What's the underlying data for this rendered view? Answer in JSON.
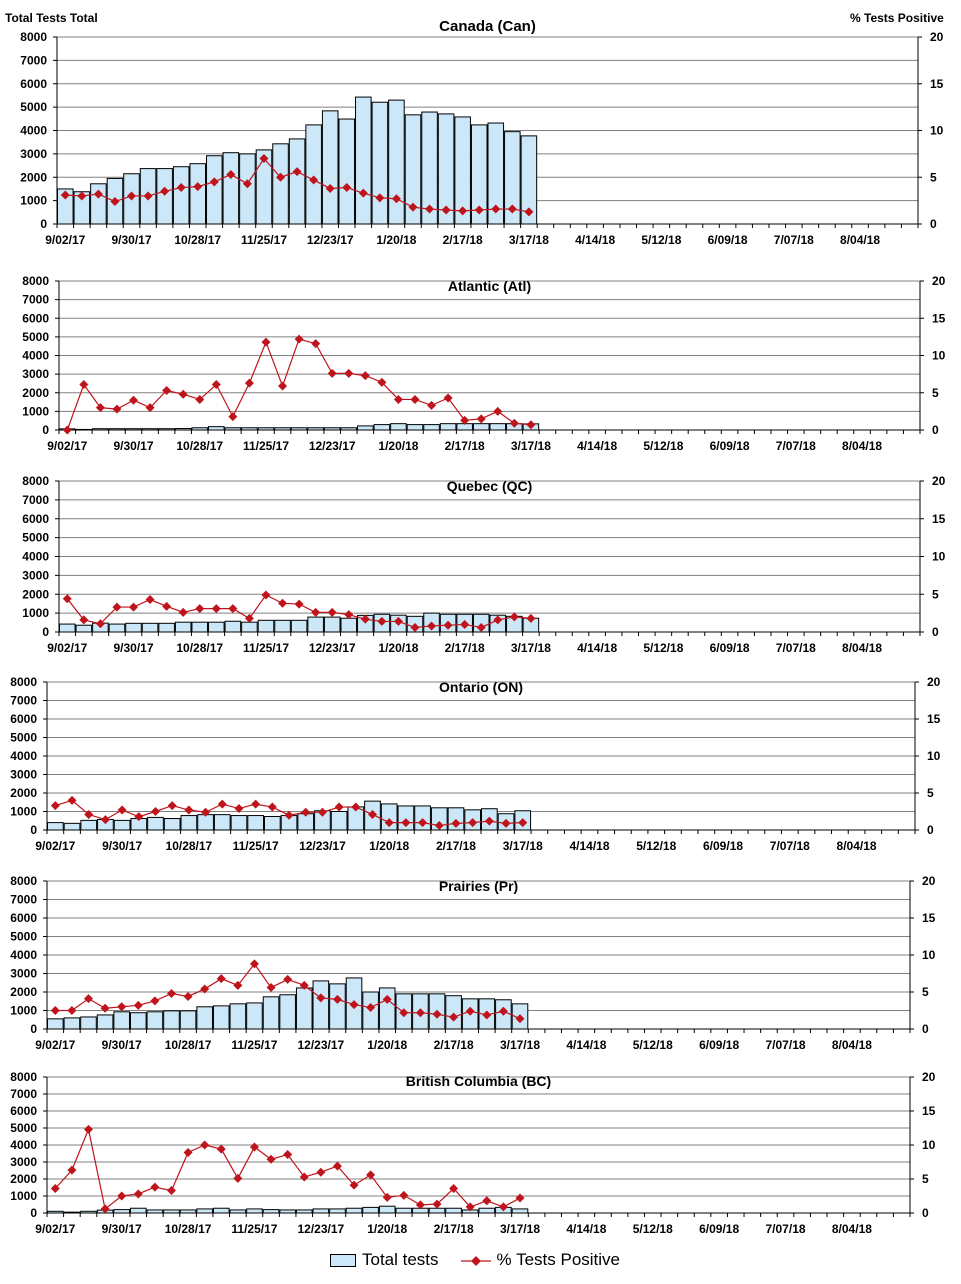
{
  "header": {
    "left_axis_title": "Total Tests Total",
    "right_axis_title": "% Tests Positive"
  },
  "legend": {
    "bars_label": "Total tests",
    "line_label": "% Tests Positive"
  },
  "colors": {
    "bar_fill": "#cce8f8",
    "bar_stroke": "#000000",
    "line": "#c0141c",
    "grid": "#808080"
  },
  "chart_data": {
    "type": "bar+line",
    "categories": [
      "9/02/17",
      "9/09/17",
      "9/16/17",
      "9/23/17",
      "9/30/17",
      "10/07/17",
      "10/14/17",
      "10/21/17",
      "10/28/17",
      "11/04/17",
      "11/11/17",
      "11/18/17",
      "11/25/17",
      "12/02/17",
      "12/09/17",
      "12/16/17",
      "12/23/17",
      "12/30/17",
      "1/06/18",
      "1/13/18",
      "1/20/18",
      "1/27/18",
      "2/03/18",
      "2/10/18",
      "2/17/18",
      "2/24/18",
      "3/03/18",
      "3/10/18",
      "3/17/18"
    ],
    "x_range": [
      "9/02/17",
      "8/25/18"
    ],
    "x_ticks": [
      "9/02/17",
      "9/30/17",
      "10/28/17",
      "11/25/17",
      "12/23/17",
      "1/20/18",
      "2/17/18",
      "3/17/18",
      "4/14/18",
      "5/12/18",
      "6/09/18",
      "7/07/18",
      "8/04/18"
    ],
    "y_left": {
      "min": 0,
      "max": 8000,
      "ticks": [
        "0",
        "1000",
        "2000",
        "3000",
        "4000",
        "5000",
        "6000",
        "7000",
        "8000"
      ]
    },
    "y_right": {
      "min": 0,
      "max": 20,
      "ticks": [
        "0",
        "5",
        "10",
        "15",
        "20"
      ]
    },
    "grid": true,
    "legend_position": "bottom",
    "panels": [
      {
        "title": "Canada (Can)",
        "total_tests": [
          1500,
          1380,
          1720,
          1950,
          2150,
          2370,
          2370,
          2450,
          2580,
          2920,
          3050,
          3000,
          3170,
          3430,
          3640,
          4240,
          4840,
          4490,
          5430,
          5210,
          5300,
          4670,
          4790,
          4710,
          4580,
          4240,
          4320,
          3950,
          3770
        ],
        "pct_positive": [
          3.1,
          3.0,
          3.2,
          2.4,
          3.0,
          3.0,
          3.5,
          3.9,
          4.0,
          4.5,
          5.3,
          4.3,
          7.0,
          5.0,
          5.6,
          4.7,
          3.8,
          3.9,
          3.3,
          2.8,
          2.7,
          1.8,
          1.6,
          1.5,
          1.4,
          1.5,
          1.6,
          1.6,
          1.3
        ]
      },
      {
        "title": "Atlantic (Atl)",
        "total_tests": [
          60,
          30,
          70,
          70,
          70,
          70,
          70,
          80,
          120,
          180,
          120,
          120,
          120,
          120,
          120,
          120,
          120,
          120,
          220,
          290,
          340,
          290,
          290,
          340,
          340,
          340,
          340,
          340,
          330
        ],
        "pct_positive": [
          0,
          6.1,
          3.0,
          2.8,
          4.0,
          3.0,
          5.3,
          4.8,
          4.1,
          6.1,
          1.8,
          6.3,
          11.8,
          5.9,
          12.2,
          11.6,
          7.6,
          7.6,
          7.3,
          6.4,
          4.1,
          4.1,
          3.3,
          4.3,
          1.3,
          1.5,
          2.5,
          0.9,
          0.7
        ]
      },
      {
        "title": "Quebec (QC)",
        "total_tests": [
          420,
          360,
          470,
          420,
          460,
          460,
          460,
          520,
          520,
          520,
          570,
          520,
          620,
          620,
          620,
          790,
          790,
          730,
          880,
          940,
          890,
          830,
          1000,
          940,
          940,
          940,
          890,
          830,
          730
        ],
        "pct_positive": [
          4.4,
          1.6,
          1.1,
          3.3,
          3.3,
          4.3,
          3.4,
          2.6,
          3.1,
          3.1,
          3.1,
          1.8,
          4.9,
          3.8,
          3.7,
          2.6,
          2.6,
          2.3,
          1.7,
          1.4,
          1.4,
          0.6,
          0.8,
          0.9,
          1.0,
          0.6,
          1.6,
          2.0,
          1.8
        ]
      },
      {
        "title": "Ontario (ON)",
        "total_tests": [
          400,
          360,
          520,
          570,
          520,
          620,
          680,
          620,
          780,
          830,
          830,
          780,
          780,
          730,
          780,
          880,
          1040,
          1000,
          1250,
          1560,
          1410,
          1300,
          1300,
          1200,
          1200,
          1090,
          1150,
          880,
          1040
        ],
        "pct_positive": [
          3.3,
          4.0,
          2.1,
          1.4,
          2.7,
          1.8,
          2.5,
          3.3,
          2.7,
          2.4,
          3.5,
          2.9,
          3.5,
          3.1,
          2.0,
          2.4,
          2.4,
          3.1,
          3.1,
          2.1,
          1.0,
          1.0,
          1.0,
          0.6,
          0.9,
          1.0,
          1.2,
          0.9,
          1.0
        ]
      },
      {
        "title": "Prairies (Pr)",
        "total_tests": [
          550,
          600,
          650,
          760,
          930,
          880,
          930,
          980,
          980,
          1200,
          1250,
          1360,
          1410,
          1740,
          1850,
          2220,
          2600,
          2440,
          2760,
          2000,
          2220,
          1900,
          1900,
          1900,
          1800,
          1630,
          1630,
          1580,
          1360
        ],
        "pct_positive": [
          2.5,
          2.5,
          4.1,
          2.8,
          3.0,
          3.2,
          3.8,
          4.8,
          4.4,
          5.4,
          6.8,
          5.9,
          8.8,
          5.6,
          6.7,
          5.9,
          4.2,
          4.0,
          3.3,
          2.9,
          4.0,
          2.2,
          2.2,
          2.0,
          1.6,
          2.4,
          1.9,
          2.4,
          1.4
        ]
      },
      {
        "title": "British Columbia (BC)",
        "total_tests": [
          100,
          50,
          100,
          170,
          200,
          280,
          180,
          180,
          180,
          240,
          280,
          180,
          240,
          200,
          180,
          180,
          240,
          240,
          280,
          330,
          400,
          280,
          280,
          280,
          280,
          180,
          280,
          330,
          240
        ],
        "pct_positive": [
          3.6,
          6.3,
          12.3,
          0.6,
          2.5,
          2.8,
          3.8,
          3.3,
          8.9,
          10.0,
          9.4,
          5.1,
          9.7,
          7.9,
          8.6,
          5.3,
          6.0,
          6.9,
          4.1,
          5.6,
          2.3,
          2.6,
          1.2,
          1.3,
          3.6,
          0.9,
          1.8,
          0.9,
          2.2
        ]
      }
    ]
  }
}
